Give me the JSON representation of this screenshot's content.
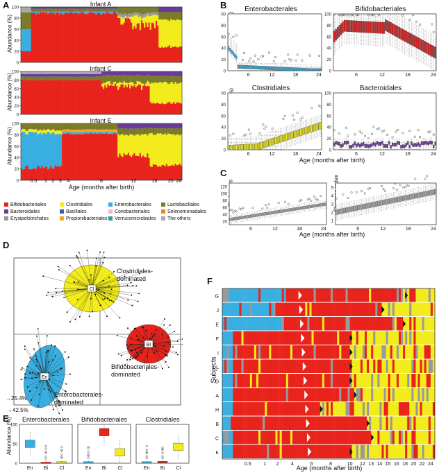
{
  "panel_labels": [
    "A",
    "B",
    "C",
    "D",
    "E",
    "F"
  ],
  "panelA": {
    "subpanels": [
      {
        "title": "Infant A"
      },
      {
        "title": "Infant C"
      },
      {
        "title": "Infant E"
      }
    ],
    "ylabel": "Abundance (%)",
    "yticks": [
      "0",
      "20",
      "40",
      "60",
      "80",
      "100"
    ],
    "xlabel": "Age (months after birth)",
    "xticks": [
      "0.5",
      "1",
      "2",
      "3",
      "4",
      "8",
      "12",
      "16",
      "20",
      "24"
    ]
  },
  "legend": [
    {
      "name": "Bifidobacteriales",
      "color": "#e8231c"
    },
    {
      "name": "Clostridiales",
      "color": "#f2ec1c"
    },
    {
      "name": "Enterobacterales",
      "color": "#39aee0"
    },
    {
      "name": "Lactobacillales",
      "color": "#7b7b2a"
    },
    {
      "name": "Bacteroidales",
      "color": "#6a3a9a"
    },
    {
      "name": "Bacillales",
      "color": "#3a5fb0"
    },
    {
      "name": "Coriobacteriales",
      "color": "#f3b7c8"
    },
    {
      "name": "Selenomonadales",
      "color": "#e88a1c"
    },
    {
      "name": "Erysipelotrichales",
      "color": "#999999"
    },
    {
      "name": "Propionibacteriales",
      "color": "#f4a71c"
    },
    {
      "name": "Verrucomicrobiales",
      "color": "#2a9a9a"
    },
    {
      "name": "The others",
      "color": "#aaaaaa"
    }
  ],
  "panelB": {
    "subpanels": [
      {
        "title": "Enterobacterales",
        "color": "#39aee0"
      },
      {
        "title": "Bifidobacteriales",
        "color": "#d81e1e"
      },
      {
        "title": "Clostridiales",
        "color": "#f2ec1c"
      },
      {
        "title": "Bacteroidales",
        "color": "#6a3a9a"
      }
    ],
    "ylabel": "Abundance (%)",
    "yticks": [
      "0",
      "20",
      "40",
      "60",
      "80",
      "100"
    ],
    "xticks": [
      "6",
      "12",
      "18",
      "24"
    ],
    "xlabel": "Age (months after birth)"
  },
  "panelC": {
    "left": {
      "ylabel": "Phylotypes",
      "yticks": [
        "20",
        "40",
        "60",
        "80",
        "100",
        "120"
      ]
    },
    "right": {
      "ylabel": "Shannon index",
      "yticks": [
        "1",
        "2",
        "3",
        "4",
        "5"
      ]
    },
    "xticks": [
      "6",
      "12",
      "18",
      "24"
    ],
    "xlabel": "Age (months after birth)"
  },
  "panelD": {
    "clusters": [
      {
        "label": "Cl",
        "text": "Clostridiales-dominated"
      },
      {
        "label": "Bi",
        "text": "Bifidobacteriales-dominated"
      },
      {
        "label": "En",
        "text": "Enterobacterales-dominated"
      }
    ],
    "axis_y": "25.4%",
    "axis_x": "42.5%"
  },
  "panelE": {
    "ylabel": "Abundance (%)",
    "yticks": [
      "0",
      "50",
      "100"
    ],
    "subpanels": [
      {
        "title": "Enterobacterales"
      },
      {
        "title": "Bifidobacteriales"
      },
      {
        "title": "Clostridiales"
      }
    ],
    "xcats": [
      "En",
      "Bi",
      "Cl"
    ]
  },
  "panelF": {
    "ylabel": "Subjects",
    "subjects": [
      "G",
      "J",
      "E",
      "F",
      "I",
      "L",
      "D",
      "A",
      "H",
      "B",
      "C",
      "K"
    ],
    "xticks": [
      "0.5",
      "1",
      "2",
      "4",
      "6",
      "8",
      "10",
      "12",
      "13",
      "14",
      "15",
      "16",
      "18",
      "20",
      "22",
      "24"
    ],
    "xlabel": "Age (months after birth)"
  }
}
